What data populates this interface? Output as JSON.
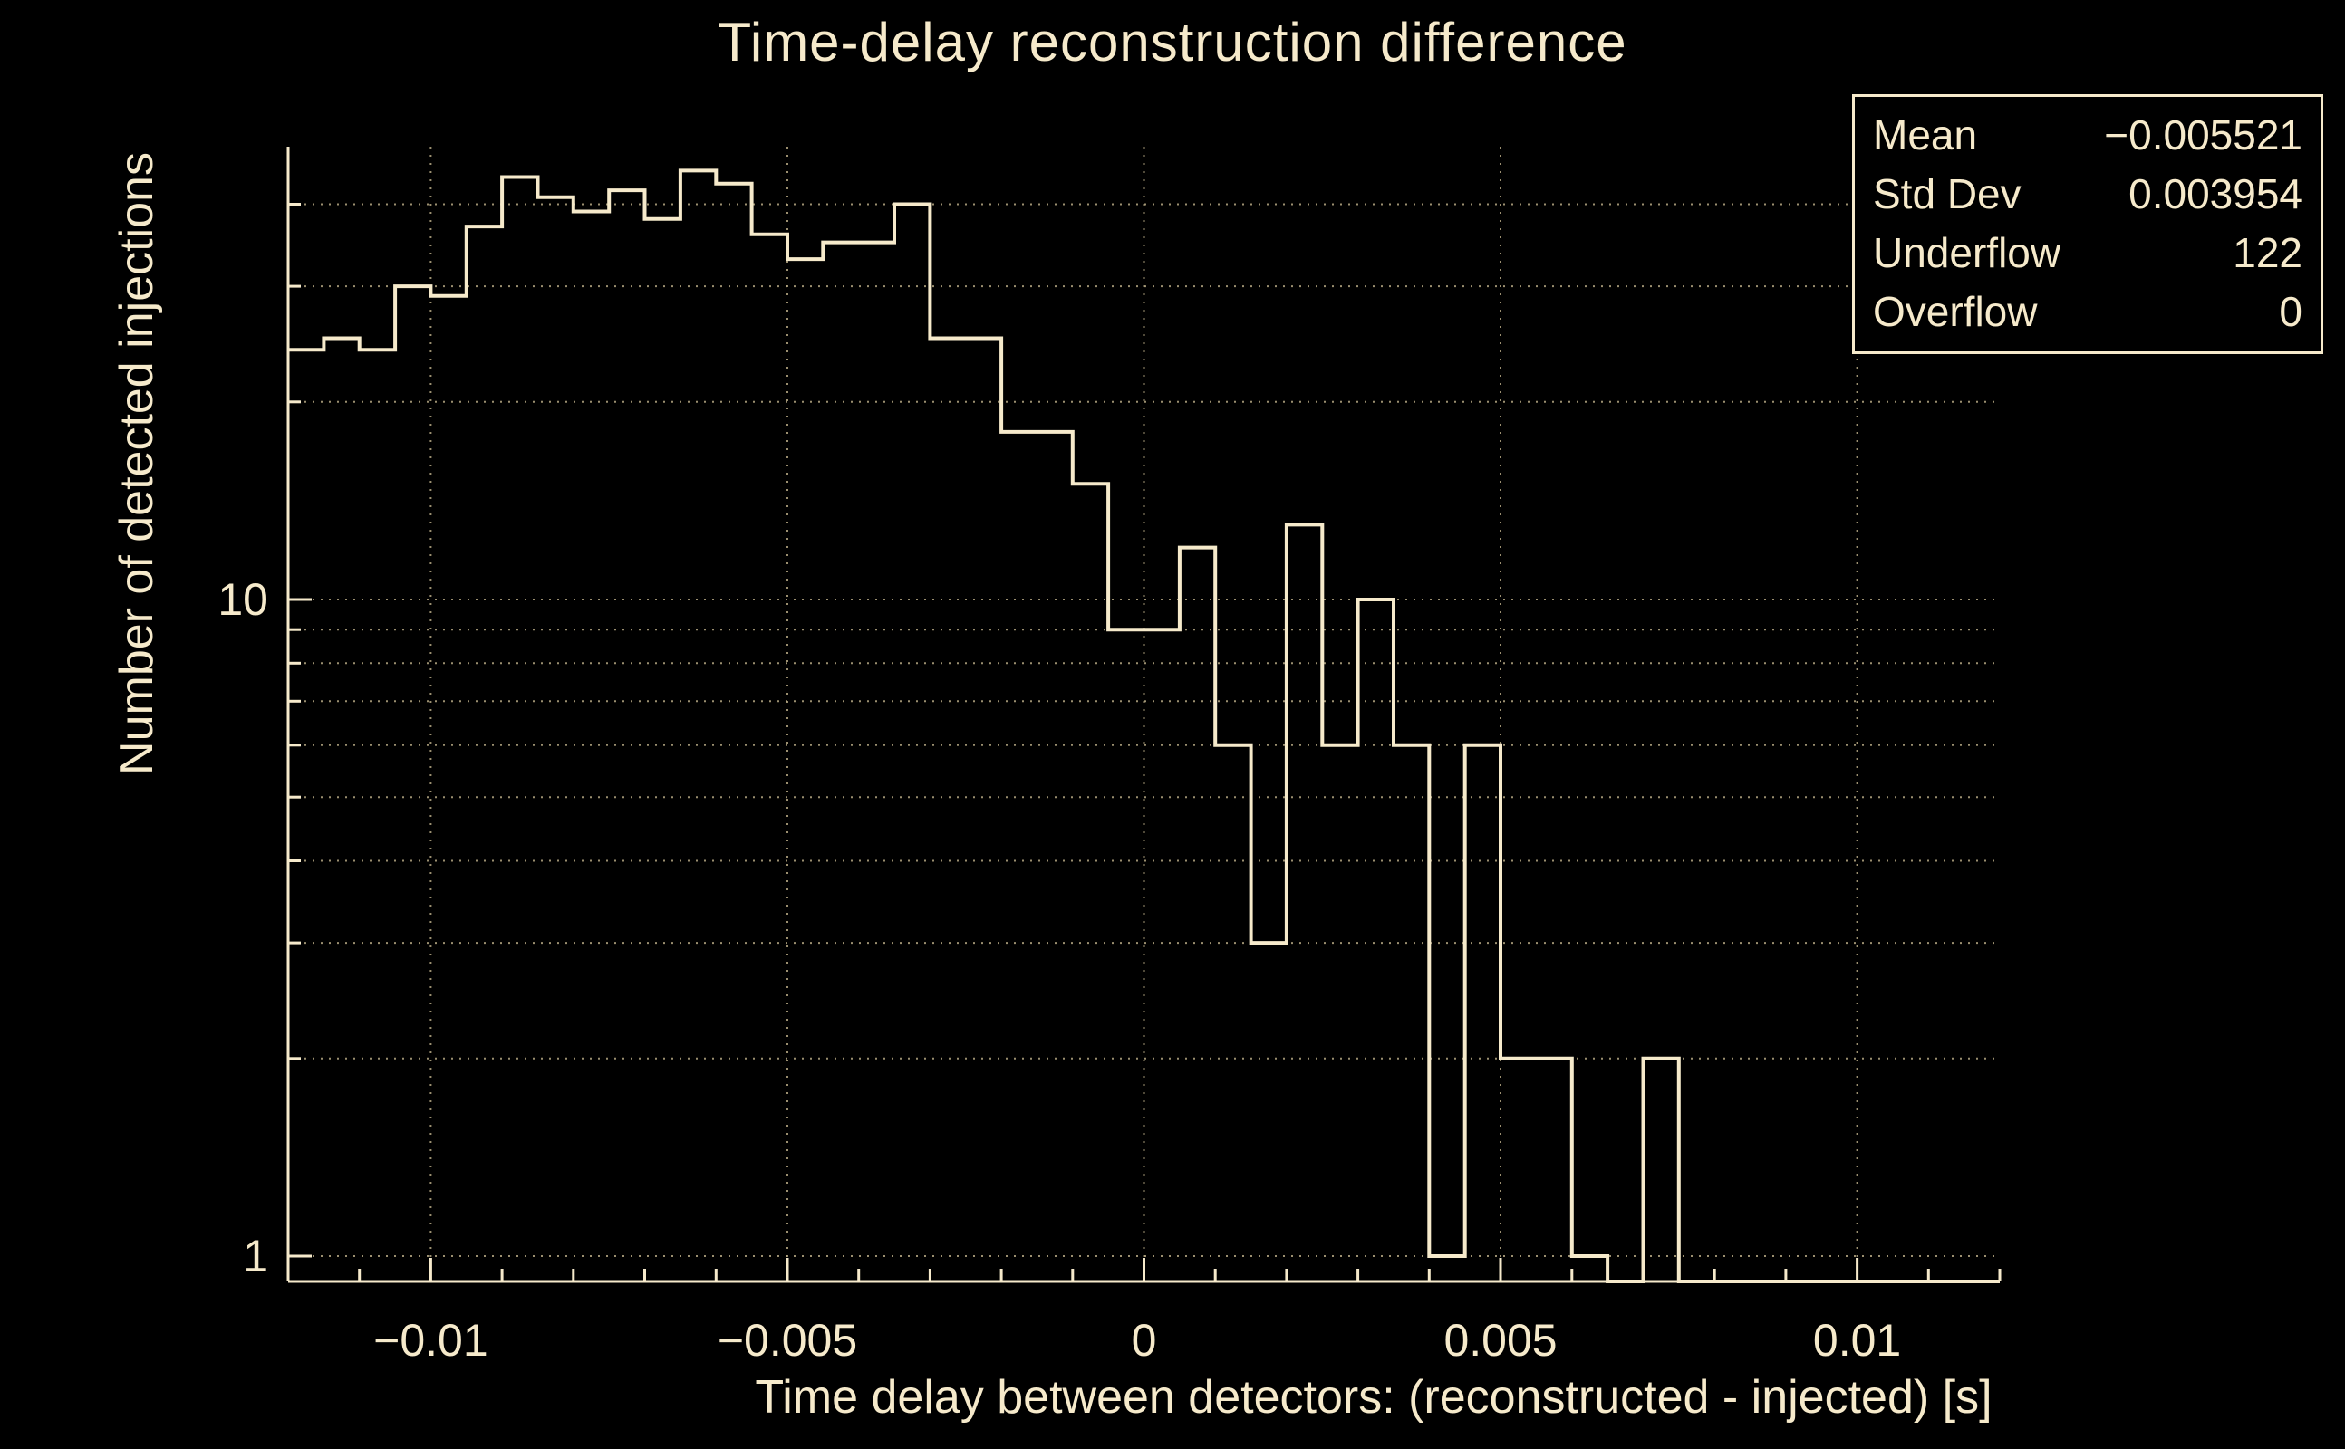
{
  "title": "Time-delay reconstruction difference",
  "colors": {
    "background": "#000000",
    "foreground": "#f6eacb",
    "grid": "#b7a984"
  },
  "stats_box": {
    "rows": [
      {
        "label": "Mean",
        "value": "−0.005521"
      },
      {
        "label": "Std Dev",
        "value": "0.003954"
      },
      {
        "label": "Underflow",
        "value": "122"
      },
      {
        "label": "Overflow",
        "value": "0"
      }
    ]
  },
  "chart_data": {
    "type": "bar",
    "subtype": "step-histogram",
    "title": "Time-delay reconstruction difference",
    "xlabel": "Time delay between detectors: (reconstructed - injected) [s]",
    "ylabel": "Number of detected injections",
    "yscale": "log",
    "xlim": [
      -0.012,
      0.012
    ],
    "ylim": [
      0.9,
      49
    ],
    "x_bin_start": -0.012,
    "x_bin_width": 0.0005,
    "values": [
      24,
      25,
      24,
      30,
      29,
      37,
      44,
      41,
      39,
      42,
      38,
      45,
      43,
      36,
      33,
      35,
      35,
      40,
      25,
      25,
      18,
      18,
      15,
      9,
      9,
      12,
      6,
      3,
      13,
      6,
      10,
      6,
      1,
      6,
      2,
      2,
      1,
      0,
      2,
      0,
      0,
      0,
      0,
      0,
      0,
      0,
      0,
      0
    ],
    "x_major_ticks": [
      -0.01,
      -0.005,
      0,
      0.005,
      0.01
    ],
    "x_major_tick_labels": [
      "−0.01",
      "−0.005",
      "0",
      "0.005",
      "0.01"
    ],
    "x_minor_tick_step": 0.001,
    "y_labeled_ticks": [
      {
        "value": 10,
        "label": "10"
      },
      {
        "value": 1,
        "label": "1"
      }
    ],
    "grid": true,
    "grid_y_values": [
      1,
      2,
      3,
      4,
      5,
      6,
      7,
      8,
      9,
      10,
      20,
      30,
      40
    ],
    "legend_position": "none"
  }
}
